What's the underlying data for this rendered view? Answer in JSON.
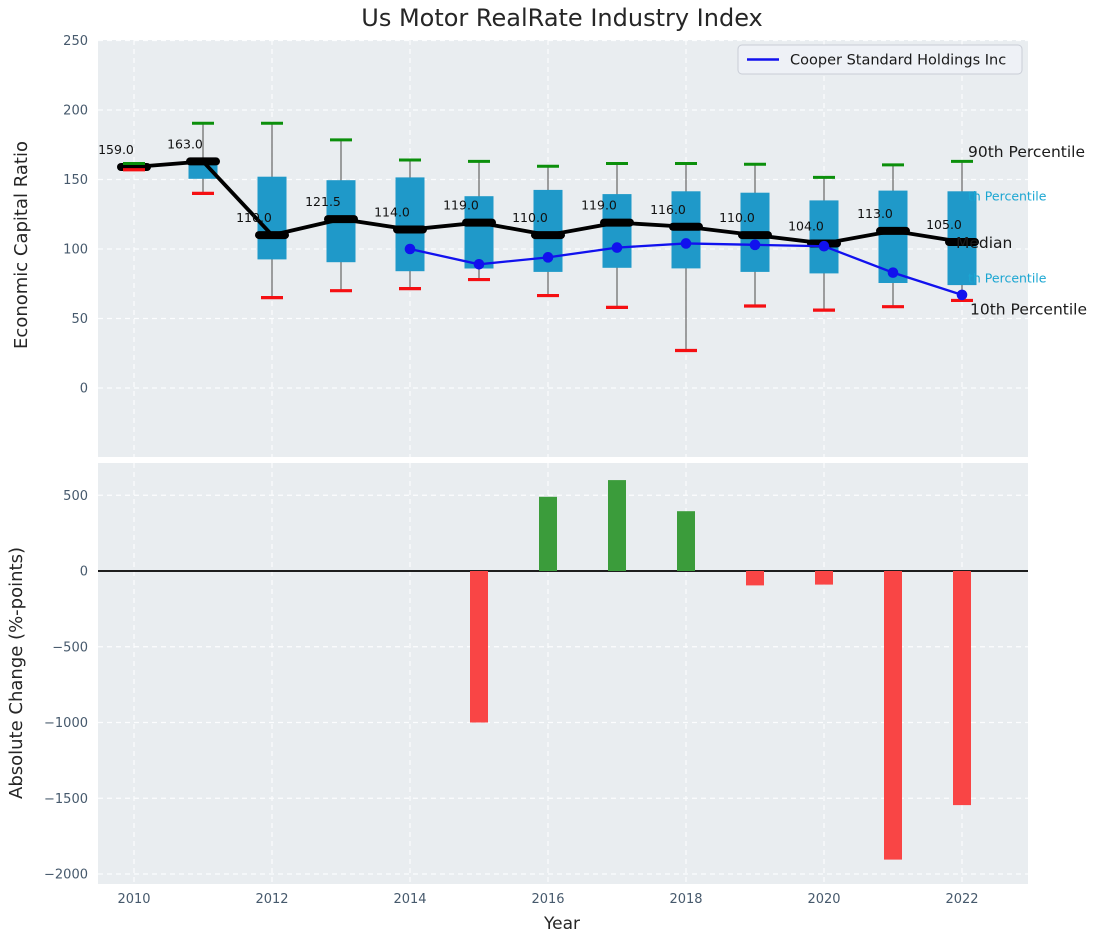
{
  "title": "Us Motor RealRate Industry Index",
  "legend": {
    "label": "Cooper Standard Holdings Inc"
  },
  "x_axis": {
    "label": "Year",
    "ticks": [
      {
        "v": 2010,
        "label": "2010"
      },
      {
        "v": 2012,
        "label": "2012"
      },
      {
        "v": 2014,
        "label": "2014"
      },
      {
        "v": 2016,
        "label": "2016"
      },
      {
        "v": 2018,
        "label": "2018"
      },
      {
        "v": 2020,
        "label": "2020"
      },
      {
        "v": 2022,
        "label": "2022"
      }
    ]
  },
  "colors": {
    "panel_bg": "#e9edf0",
    "grid": "#fcfdfe",
    "tick": "#46596c",
    "box": "#1f99c9",
    "whisker": "#707070",
    "p90_cap": "#0b8f0b",
    "p10_cap": "#f50f12",
    "median": "#000000",
    "cooper_line": "#1111ee",
    "bar_up": "#3b9c3b",
    "bar_down": "#f94545",
    "title_color": "#262626",
    "end_label_dark": "#1a1a1a",
    "end_label_cyan": "#1ba6d2",
    "legend_bg": "#eef1f6",
    "legend_border": "#c9cdd6"
  },
  "chart_data": [
    {
      "type": "box-whisker+line",
      "title": "Us Motor RealRate Industry Index",
      "ylabel": "Economic Capital Ratio",
      "ylim": [
        -50,
        251
      ],
      "grid": true,
      "yticks": [
        {
          "v": 0,
          "label": "0"
        },
        {
          "v": 50,
          "label": "50"
        },
        {
          "v": 100,
          "label": "100"
        },
        {
          "v": 150,
          "label": "150"
        },
        {
          "v": 200,
          "label": "200"
        },
        {
          "v": 250,
          "label": "250"
        }
      ],
      "years": [
        2010,
        2011,
        2012,
        2013,
        2014,
        2015,
        2016,
        2017,
        2018,
        2019,
        2020,
        2021,
        2022
      ],
      "p90": [
        161.5,
        190.5,
        190.5,
        178.5,
        164,
        163,
        159.5,
        161.5,
        161.5,
        161,
        151.5,
        160.5,
        163
      ],
      "p75": [
        160,
        163.5,
        152,
        149.5,
        151.5,
        138,
        142.5,
        139.5,
        141.5,
        140.5,
        135,
        142,
        141.5
      ],
      "median": [
        159,
        163,
        110,
        121.5,
        114,
        119,
        110,
        119,
        116,
        110,
        104,
        113,
        105
      ],
      "p25": [
        158,
        150.5,
        92.5,
        90.5,
        84,
        86,
        83.5,
        86.5,
        86,
        83.5,
        82.5,
        75.5,
        74
      ],
      "p10": [
        157,
        140,
        65,
        70,
        71.5,
        78,
        66.5,
        58,
        27,
        59,
        56,
        58.5,
        63
      ],
      "median_labels": [
        "159.0",
        "163.0",
        "110.0",
        "121.5",
        "114.0",
        "119.0",
        "110.0",
        "119.0",
        "116.0",
        "110.0",
        "104.0",
        "113.0",
        "105.0"
      ],
      "series": [
        {
          "name": "Cooper Standard Holdings Inc",
          "values": [
            null,
            null,
            null,
            null,
            100,
            89,
            94,
            101,
            104,
            103,
            102,
            83,
            67
          ]
        }
      ],
      "end_labels": [
        {
          "text": "90th Percentile",
          "v": 170,
          "x": 968,
          "size": 15.5,
          "color": "#1a1a1a",
          "name": "percentile-90-label"
        },
        {
          "text": "th Percentile",
          "v": 138,
          "x": 968,
          "size": 12.5,
          "color": "#1ba6d2",
          "name": "percentile-75-label"
        },
        {
          "text": "Median",
          "v": 104.5,
          "x": 956,
          "size": 15.5,
          "color": "#1a1a1a",
          "name": "median-end-label"
        },
        {
          "text": "th Percentile",
          "v": 79,
          "x": 968,
          "size": 12.5,
          "color": "#1ba6d2",
          "name": "percentile-25-label"
        },
        {
          "text": "10th Percentile",
          "v": 57,
          "x": 970,
          "size": 15.5,
          "color": "#1a1a1a",
          "name": "percentile-10-label"
        }
      ]
    },
    {
      "type": "bar",
      "ylabel": "Absolute Change (%-points)",
      "xlabel": "Year",
      "ylim": [
        -2065,
        710
      ],
      "grid": true,
      "yticks": [
        {
          "v": 500,
          "label": "500"
        },
        {
          "v": 0,
          "label": "0"
        },
        {
          "v": -500,
          "label": "−500"
        },
        {
          "v": -1000,
          "label": "−1000"
        },
        {
          "v": -1500,
          "label": "−1500"
        },
        {
          "v": -2000,
          "label": "−2000"
        }
      ],
      "years": [
        2010,
        2011,
        2012,
        2013,
        2014,
        2015,
        2016,
        2017,
        2018,
        2019,
        2020,
        2021,
        2022
      ],
      "values": [
        null,
        null,
        null,
        null,
        null,
        -1000,
        490,
        600,
        395,
        -95,
        -90,
        -1905,
        -1545
      ]
    }
  ]
}
